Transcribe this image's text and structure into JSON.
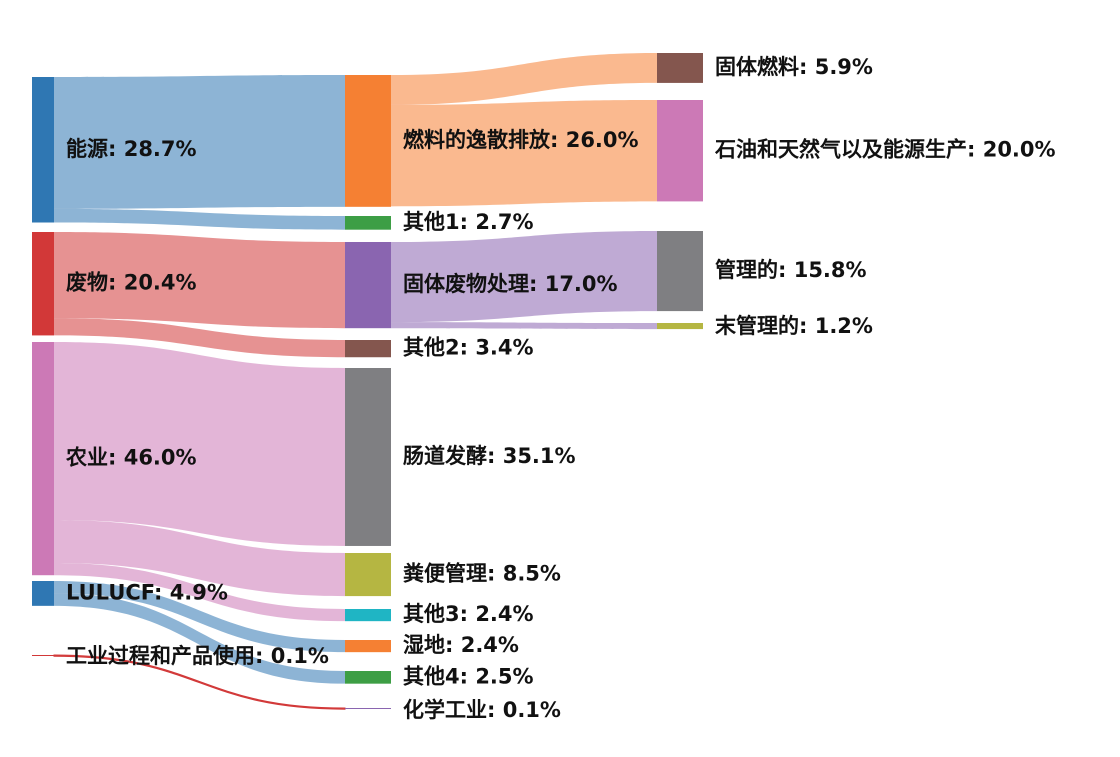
{
  "chart_data": {
    "type": "sankey",
    "unit": "%",
    "nodes": [
      {
        "id": "energy",
        "name": "能源",
        "value": 28.7,
        "color": "#2f77b3"
      },
      {
        "id": "waste",
        "name": "废物",
        "value": 20.4,
        "color": "#d23838"
      },
      {
        "id": "agri",
        "name": "农业",
        "value": 46.0,
        "color": "#cc79b6"
      },
      {
        "id": "lulucf",
        "name": "LULUCF",
        "value": 4.9,
        "color": "#2f77b3"
      },
      {
        "id": "ippu",
        "name": "工业过程和产品使用",
        "value": 0.1,
        "color": "#d23838"
      },
      {
        "id": "fugitive",
        "name": "燃料的逸散排放",
        "value": 26.0,
        "color": "#f58033"
      },
      {
        "id": "other1",
        "name": "其他1",
        "value": 2.7,
        "color": "#3d9e45"
      },
      {
        "id": "solidwaste",
        "name": "固体废物处理",
        "value": 17.0,
        "color": "#8a65b0"
      },
      {
        "id": "other2",
        "name": "其他2",
        "value": 3.4,
        "color": "#84564e"
      },
      {
        "id": "enteric",
        "name": "肠道发酵",
        "value": 35.1,
        "color": "#7f7f82"
      },
      {
        "id": "manure",
        "name": "粪便管理",
        "value": 8.5,
        "color": "#b5b642"
      },
      {
        "id": "other3",
        "name": "其他3",
        "value": 2.4,
        "color": "#1fb5c4"
      },
      {
        "id": "wetland",
        "name": "湿地",
        "value": 2.4,
        "color": "#f58033"
      },
      {
        "id": "other4",
        "name": "其他4",
        "value": 2.5,
        "color": "#3d9e45"
      },
      {
        "id": "chem",
        "name": "化学工业",
        "value": 0.1,
        "color": "#8a65b0"
      },
      {
        "id": "solidfuel",
        "name": "固体燃料",
        "value": 5.9,
        "color": "#84564e"
      },
      {
        "id": "oilgas",
        "name": "石油和天然气以及能源生产",
        "value": 20.0,
        "color": "#cc79b6"
      },
      {
        "id": "managed",
        "name": "管理的",
        "value": 15.8,
        "color": "#7f7f82"
      },
      {
        "id": "unmanaged",
        "name": "末管理的",
        "value": 1.2,
        "color": "#b5b642"
      }
    ],
    "links": [
      {
        "source": "energy",
        "target": "fugitive",
        "value": 26.0
      },
      {
        "source": "energy",
        "target": "other1",
        "value": 2.7
      },
      {
        "source": "waste",
        "target": "solidwaste",
        "value": 17.0
      },
      {
        "source": "waste",
        "target": "other2",
        "value": 3.4
      },
      {
        "source": "agri",
        "target": "enteric",
        "value": 35.1
      },
      {
        "source": "agri",
        "target": "manure",
        "value": 8.5
      },
      {
        "source": "agri",
        "target": "other3",
        "value": 2.4
      },
      {
        "source": "lulucf",
        "target": "wetland",
        "value": 2.4
      },
      {
        "source": "lulucf",
        "target": "other4",
        "value": 2.5
      },
      {
        "source": "ippu",
        "target": "chem",
        "value": 0.1
      },
      {
        "source": "fugitive",
        "target": "solidfuel",
        "value": 5.9
      },
      {
        "source": "fugitive",
        "target": "oilgas",
        "value": 20.0
      },
      {
        "source": "solidwaste",
        "target": "managed",
        "value": 15.8
      },
      {
        "source": "solidwaste",
        "target": "unmanaged",
        "value": 1.2
      }
    ]
  }
}
